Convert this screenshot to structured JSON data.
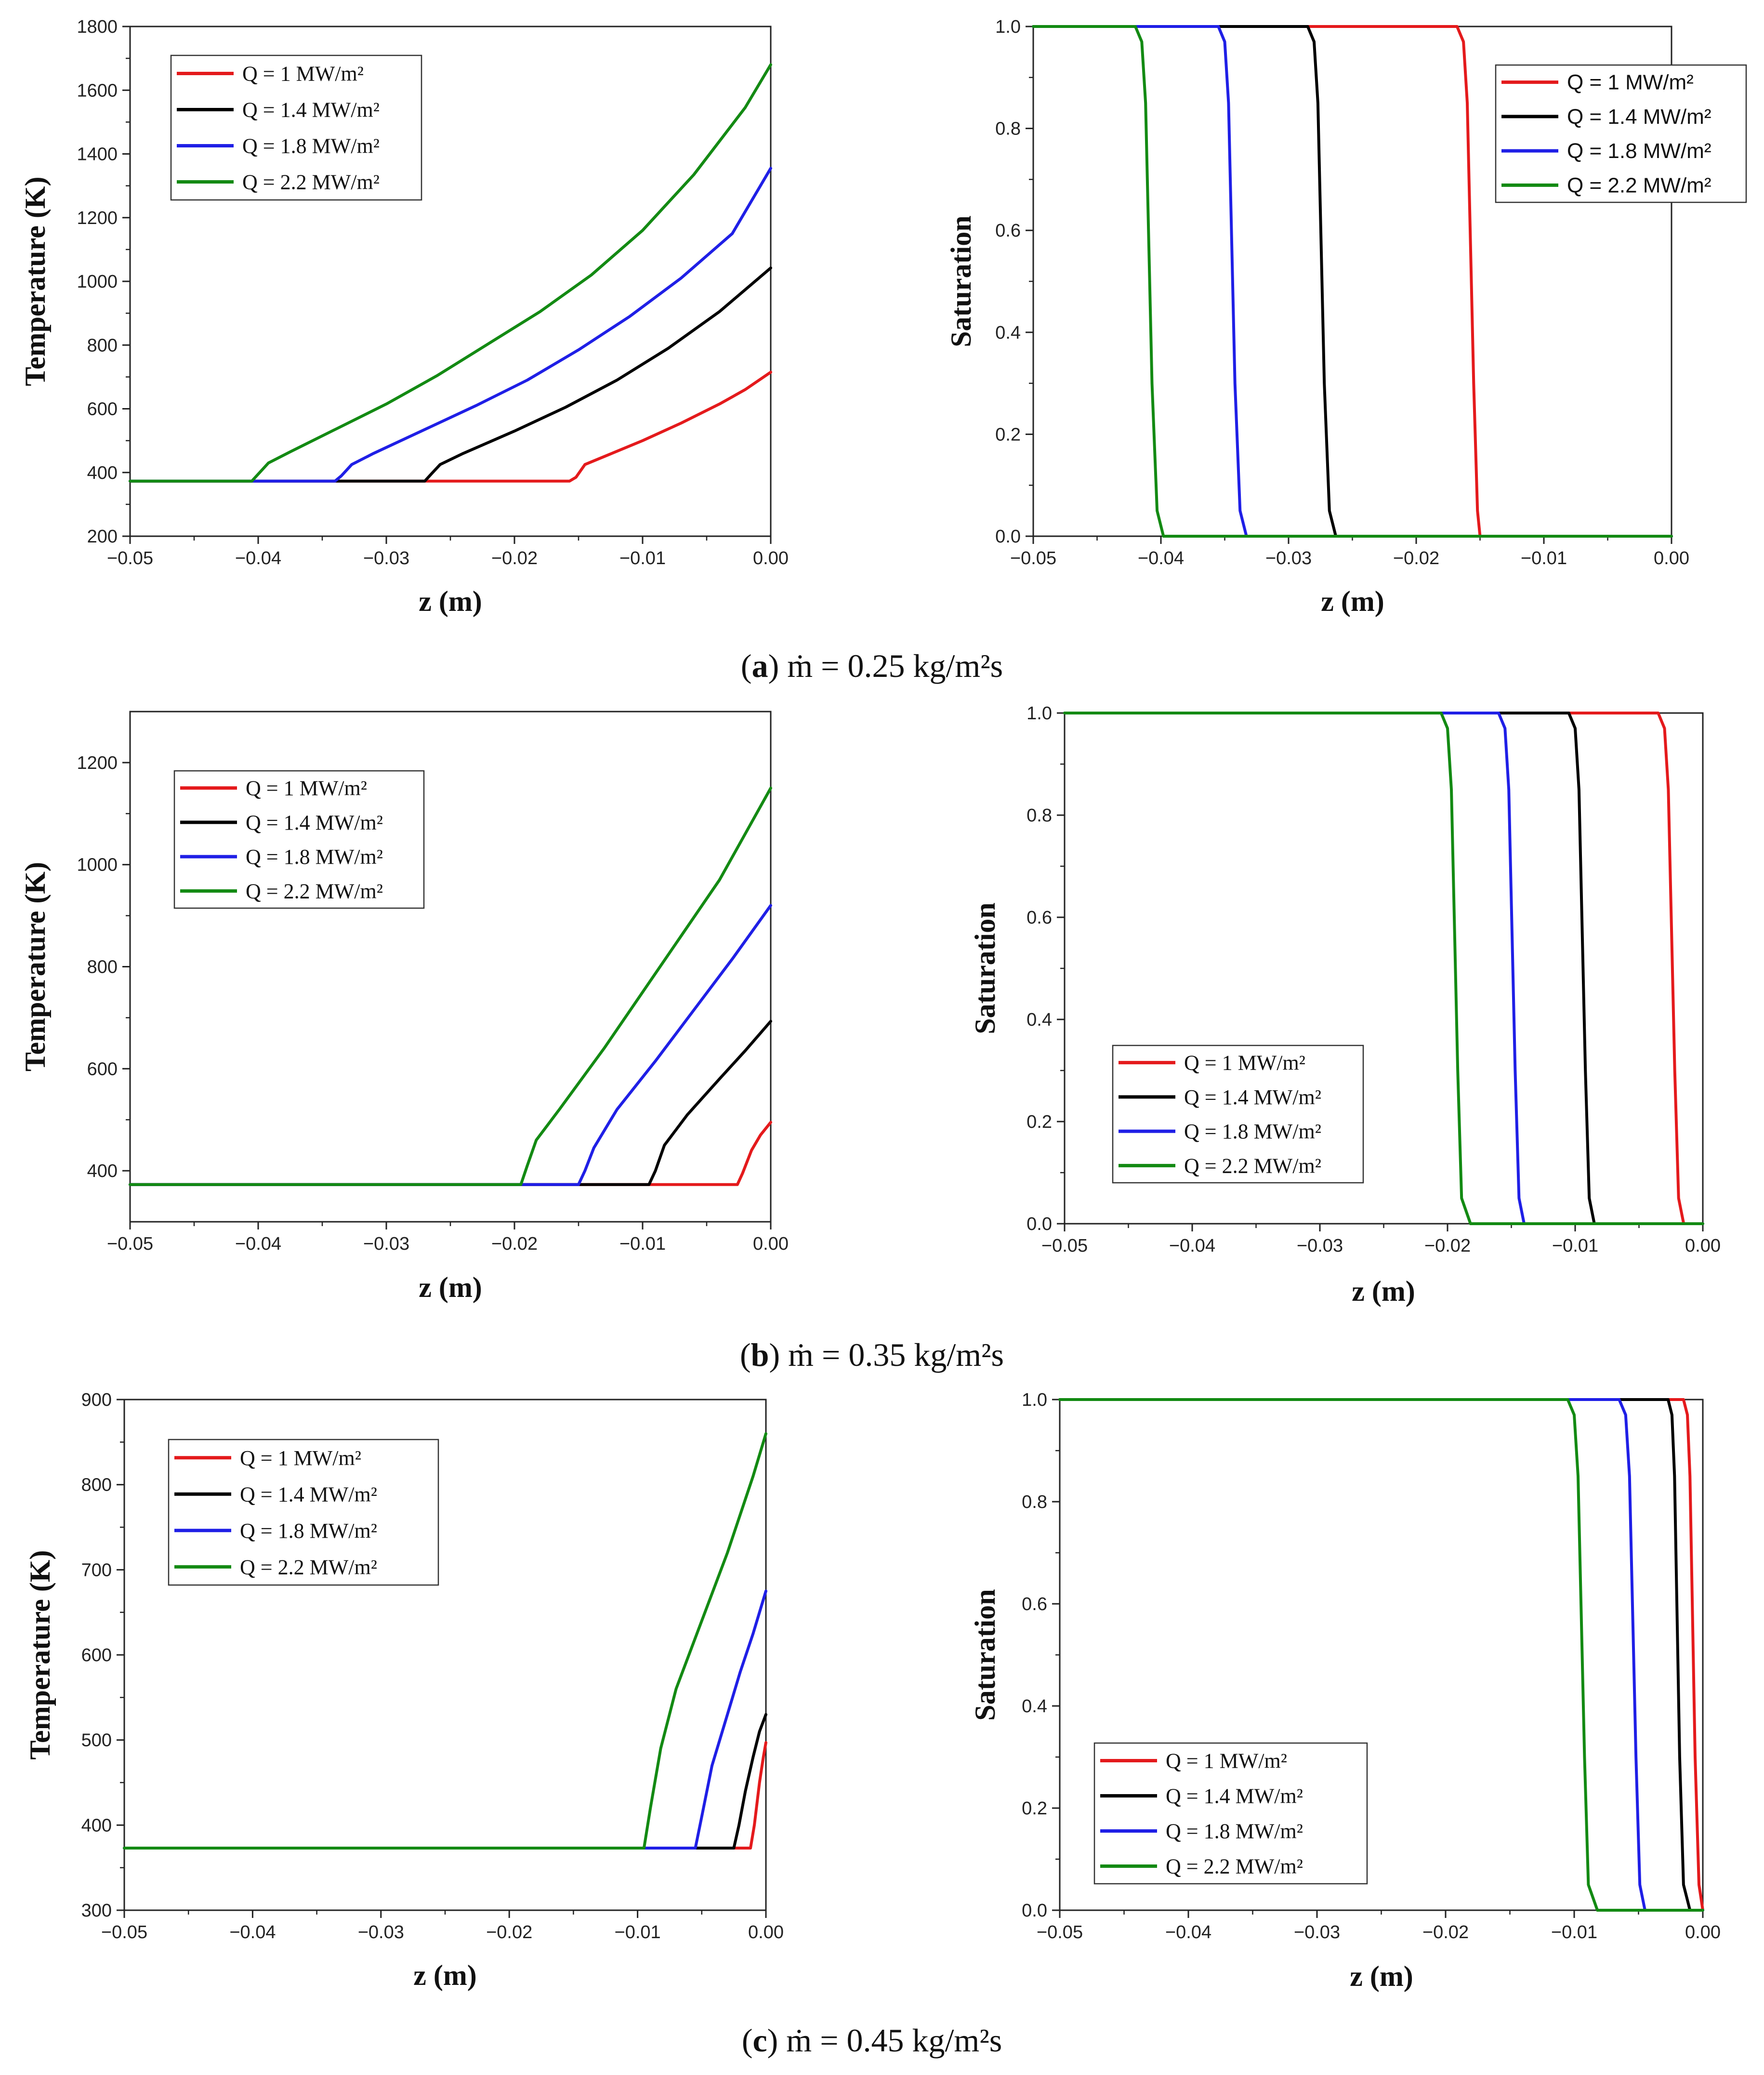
{
  "figure": {
    "captions": [
      {
        "letter": "a",
        "text": "ṁ = 0.25 kg/m²s"
      },
      {
        "letter": "b",
        "text": "ṁ = 0.35 kg/m²s"
      },
      {
        "letter": "c",
        "text": "ṁ = 0.45 kg/m²s"
      }
    ]
  },
  "chart_data": [
    {
      "id": "a-temp",
      "type": "line",
      "xlabel": "z (m)",
      "ylabel": "Temperature (K)",
      "xlim": [
        -0.05,
        0.0
      ],
      "ylim": [
        200,
        1800
      ],
      "xticks": [
        "-0.05",
        "-0.04",
        "-0.03",
        "-0.02",
        "-0.01",
        "0.00"
      ],
      "yticks": [
        "200",
        "400",
        "600",
        "800",
        "1000",
        "1200",
        "1400",
        "1600",
        "1800"
      ],
      "legend_position": "top-left",
      "series": [
        {
          "name": "Q = 1 MW/m²",
          "color": "#e41a1c",
          "x": [
            -0.05,
            -0.0157,
            -0.0152,
            -0.0145,
            -0.013,
            -0.01,
            -0.007,
            -0.004,
            -0.002,
            0.0
          ],
          "y": [
            373,
            373,
            385,
            425,
            450,
            500,
            555,
            615,
            660,
            715
          ]
        },
        {
          "name": "Q = 1.4 MW/m²",
          "color": "#000000",
          "x": [
            -0.05,
            -0.027,
            -0.0265,
            -0.0258,
            -0.024,
            -0.02,
            -0.016,
            -0.012,
            -0.008,
            -0.004,
            0.0
          ],
          "y": [
            373,
            373,
            395,
            425,
            460,
            530,
            605,
            690,
            790,
            905,
            1042
          ]
        },
        {
          "name": "Q = 1.8 MW/m²",
          "color": "#1f1fe6",
          "x": [
            -0.05,
            -0.034,
            -0.0335,
            -0.0327,
            -0.031,
            -0.027,
            -0.023,
            -0.019,
            -0.015,
            -0.011,
            -0.007,
            -0.003,
            0.0
          ],
          "y": [
            373,
            373,
            390,
            425,
            460,
            535,
            610,
            690,
            785,
            890,
            1010,
            1150,
            1355
          ]
        },
        {
          "name": "Q = 2.2 MW/m²",
          "color": "#138a13",
          "x": [
            -0.05,
            -0.0405,
            -0.04,
            -0.0392,
            -0.0375,
            -0.034,
            -0.03,
            -0.026,
            -0.022,
            -0.018,
            -0.014,
            -0.01,
            -0.006,
            -0.002,
            0.0
          ],
          "y": [
            373,
            373,
            395,
            430,
            465,
            535,
            615,
            705,
            805,
            905,
            1020,
            1160,
            1335,
            1545,
            1680
          ]
        }
      ]
    },
    {
      "id": "a-sat",
      "type": "line",
      "xlabel": "z (m)",
      "ylabel": "Saturation",
      "xlim": [
        -0.05,
        0.0
      ],
      "ylim": [
        0.0,
        1.0
      ],
      "xticks": [
        "-0.05",
        "-0.04",
        "-0.03",
        "-0.02",
        "-0.01",
        "0.00"
      ],
      "yticks": [
        "0.0",
        "0.2",
        "0.4",
        "0.6",
        "0.8",
        "1.0"
      ],
      "legend_position": "top-right",
      "series": [
        {
          "name": "Q = 1 MW/m²",
          "color": "#e41a1c",
          "x": [
            -0.05,
            -0.0168,
            -0.0163,
            -0.016,
            -0.0155,
            -0.0152,
            -0.015,
            0.0
          ],
          "y": [
            1.0,
            1.0,
            0.97,
            0.85,
            0.3,
            0.05,
            0.0,
            0.0
          ]
        },
        {
          "name": "Q = 1.4 MW/m²",
          "color": "#000000",
          "x": [
            -0.05,
            -0.0285,
            -0.028,
            -0.0277,
            -0.0272,
            -0.0268,
            -0.0263,
            0.0
          ],
          "y": [
            1.0,
            1.0,
            0.97,
            0.85,
            0.3,
            0.05,
            0.0,
            0.0
          ]
        },
        {
          "name": "Q = 1.8 MW/m²",
          "color": "#1f1fe6",
          "x": [
            -0.05,
            -0.0355,
            -0.035,
            -0.0347,
            -0.0342,
            -0.0338,
            -0.0333,
            0.0
          ],
          "y": [
            1.0,
            1.0,
            0.97,
            0.85,
            0.3,
            0.05,
            0.0,
            0.0
          ]
        },
        {
          "name": "Q = 2.2 MW/m²",
          "color": "#138a13",
          "x": [
            -0.05,
            -0.042,
            -0.0415,
            -0.0412,
            -0.0407,
            -0.0403,
            -0.0398,
            0.0
          ],
          "y": [
            1.0,
            1.0,
            0.97,
            0.85,
            0.3,
            0.05,
            0.0,
            0.0
          ]
        }
      ]
    },
    {
      "id": "b-temp",
      "type": "line",
      "xlabel": "z (m)",
      "ylabel": "Temperature (K)",
      "xlim": [
        -0.05,
        0.0
      ],
      "ylim": [
        300,
        1300
      ],
      "xticks": [
        "-0.05",
        "-0.04",
        "-0.03",
        "-0.02",
        "-0.01",
        "0.00"
      ],
      "yticks": [
        "400",
        "600",
        "800",
        "1000",
        "1200"
      ],
      "legend_position": "top-left",
      "series": [
        {
          "name": "Q = 1 MW/m²",
          "color": "#e41a1c",
          "x": [
            -0.05,
            -0.0026,
            -0.0022,
            -0.0015,
            -0.0008,
            0.0
          ],
          "y": [
            373,
            373,
            395,
            440,
            470,
            495
          ]
        },
        {
          "name": "Q = 1.4 MW/m²",
          "color": "#000000",
          "x": [
            -0.05,
            -0.0095,
            -0.009,
            -0.0083,
            -0.0065,
            -0.004,
            -0.002,
            0.0
          ],
          "y": [
            373,
            373,
            400,
            450,
            510,
            580,
            635,
            693
          ]
        },
        {
          "name": "Q = 1.8 MW/m²",
          "color": "#1f1fe6",
          "x": [
            -0.05,
            -0.015,
            -0.0145,
            -0.0138,
            -0.012,
            -0.009,
            -0.006,
            -0.003,
            0.0
          ],
          "y": [
            373,
            373,
            400,
            445,
            520,
            615,
            715,
            815,
            920
          ]
        },
        {
          "name": "Q = 2.2 MW/m²",
          "color": "#138a13",
          "x": [
            -0.05,
            -0.0195,
            -0.019,
            -0.0183,
            -0.0165,
            -0.013,
            -0.01,
            -0.007,
            -0.004,
            -0.002,
            0.0
          ],
          "y": [
            373,
            373,
            410,
            460,
            520,
            640,
            750,
            860,
            970,
            1060,
            1150
          ]
        }
      ]
    },
    {
      "id": "b-sat",
      "type": "line",
      "xlabel": "z (m)",
      "ylabel": "Saturation",
      "xlim": [
        -0.05,
        0.0
      ],
      "ylim": [
        0.0,
        1.0
      ],
      "xticks": [
        "-0.05",
        "-0.04",
        "-0.03",
        "-0.02",
        "-0.01",
        "0.00"
      ],
      "yticks": [
        "0.0",
        "0.2",
        "0.4",
        "0.6",
        "0.8",
        "1.0"
      ],
      "legend_position": "bottom-left",
      "series": [
        {
          "name": "Q = 1 MW/m²",
          "color": "#e41a1c",
          "x": [
            -0.05,
            -0.0035,
            -0.003,
            -0.0027,
            -0.0022,
            -0.0019,
            -0.0015,
            0.0
          ],
          "y": [
            1.0,
            1.0,
            0.97,
            0.85,
            0.3,
            0.05,
            0.0,
            0.0
          ]
        },
        {
          "name": "Q = 1.4 MW/m²",
          "color": "#000000",
          "x": [
            -0.05,
            -0.0105,
            -0.01,
            -0.0097,
            -0.0092,
            -0.0089,
            -0.0085,
            0.0
          ],
          "y": [
            1.0,
            1.0,
            0.97,
            0.85,
            0.3,
            0.05,
            0.0,
            0.0
          ]
        },
        {
          "name": "Q = 1.8 MW/m²",
          "color": "#1f1fe6",
          "x": [
            -0.05,
            -0.016,
            -0.0155,
            -0.0152,
            -0.0147,
            -0.0144,
            -0.014,
            0.0
          ],
          "y": [
            1.0,
            1.0,
            0.97,
            0.85,
            0.3,
            0.05,
            0.0,
            0.0
          ]
        },
        {
          "name": "Q = 2.2 MW/m²",
          "color": "#138a13",
          "x": [
            -0.05,
            -0.0205,
            -0.02,
            -0.0197,
            -0.0192,
            -0.0189,
            -0.0182,
            0.0
          ],
          "y": [
            1.0,
            1.0,
            0.97,
            0.85,
            0.3,
            0.05,
            0.0,
            0.0
          ]
        }
      ]
    },
    {
      "id": "c-temp",
      "type": "line",
      "xlabel": "z (m)",
      "ylabel": "Temperature (K)",
      "xlim": [
        -0.05,
        0.0
      ],
      "ylim": [
        300,
        900
      ],
      "xticks": [
        "-0.05",
        "-0.04",
        "-0.03",
        "-0.02",
        "-0.01",
        "0.00"
      ],
      "yticks": [
        "300",
        "400",
        "500",
        "600",
        "700",
        "800",
        "900"
      ],
      "legend_position": "top-left",
      "series": [
        {
          "name": "Q = 1 MW/m²",
          "color": "#e41a1c",
          "x": [
            -0.05,
            -0.0012,
            -0.0009,
            -0.0005,
            -0.0002,
            0.0
          ],
          "y": [
            373,
            373,
            400,
            450,
            480,
            497
          ]
        },
        {
          "name": "Q = 1.4 MW/m²",
          "color": "#000000",
          "x": [
            -0.05,
            -0.0025,
            -0.0021,
            -0.0016,
            -0.001,
            -0.0005,
            0.0
          ],
          "y": [
            373,
            373,
            400,
            440,
            480,
            510,
            530
          ]
        },
        {
          "name": "Q = 1.8 MW/m²",
          "color": "#1f1fe6",
          "x": [
            -0.05,
            -0.0055,
            -0.005,
            -0.0042,
            -0.0032,
            -0.002,
            -0.001,
            0.0
          ],
          "y": [
            373,
            373,
            410,
            470,
            520,
            580,
            625,
            675
          ]
        },
        {
          "name": "Q = 2.2 MW/m²",
          "color": "#138a13",
          "x": [
            -0.05,
            -0.0095,
            -0.009,
            -0.0082,
            -0.007,
            -0.005,
            -0.003,
            -0.001,
            0.0
          ],
          "y": [
            373,
            373,
            420,
            490,
            560,
            640,
            720,
            810,
            860
          ]
        }
      ]
    },
    {
      "id": "c-sat",
      "type": "line",
      "xlabel": "z (m)",
      "ylabel": "Saturation",
      "xlim": [
        -0.05,
        0.0
      ],
      "ylim": [
        0.0,
        1.0
      ],
      "xticks": [
        "-0.05",
        "-0.04",
        "-0.03",
        "-0.02",
        "-0.01",
        "0.00"
      ],
      "yticks": [
        "0.0",
        "0.2",
        "0.4",
        "0.6",
        "0.8",
        "1.0"
      ],
      "legend_position": "bottom-left",
      "series": [
        {
          "name": "Q = 1 MW/m²",
          "color": "#e41a1c",
          "x": [
            -0.05,
            -0.0015,
            -0.0012,
            -0.001,
            -0.0006,
            -0.0003,
            0.0,
            0.0
          ],
          "y": [
            1.0,
            1.0,
            0.97,
            0.85,
            0.3,
            0.05,
            0.0,
            0.0
          ]
        },
        {
          "name": "Q = 1.4 MW/m²",
          "color": "#000000",
          "x": [
            -0.05,
            -0.0027,
            -0.0024,
            -0.0022,
            -0.0018,
            -0.0015,
            -0.001,
            0.0
          ],
          "y": [
            1.0,
            1.0,
            0.97,
            0.85,
            0.3,
            0.05,
            0.0,
            0.0
          ]
        },
        {
          "name": "Q = 1.8 MW/m²",
          "color": "#1f1fe6",
          "x": [
            -0.05,
            -0.0065,
            -0.006,
            -0.0057,
            -0.0052,
            -0.0049,
            -0.0045,
            0.0
          ],
          "y": [
            1.0,
            1.0,
            0.97,
            0.85,
            0.3,
            0.05,
            0.0,
            0.0
          ]
        },
        {
          "name": "Q = 2.2 MW/m²",
          "color": "#138a13",
          "x": [
            -0.05,
            -0.0105,
            -0.01,
            -0.0097,
            -0.0092,
            -0.0089,
            -0.0082,
            0.0
          ],
          "y": [
            1.0,
            1.0,
            0.97,
            0.85,
            0.3,
            0.05,
            0.0,
            0.0
          ]
        }
      ]
    }
  ]
}
